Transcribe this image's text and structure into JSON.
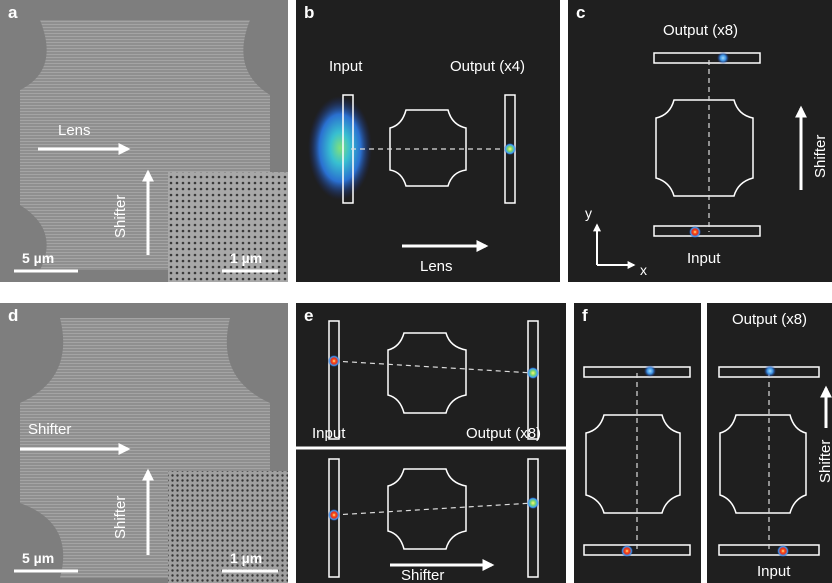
{
  "panels": {
    "a": {
      "letter": "a",
      "lens": "Lens",
      "shifter": "Shifter",
      "scale_main": "5 µm",
      "scale_inset": "1 µm"
    },
    "b": {
      "letter": "b",
      "input": "Input",
      "output": "Output (x4)",
      "lens": "Lens"
    },
    "c": {
      "letter": "c",
      "output": "Output (x8)",
      "input": "Input",
      "shifter": "Shifter",
      "axis_y": "y",
      "axis_x": "x"
    },
    "d": {
      "letter": "d",
      "shifter_h": "Shifter",
      "shifter_v": "Shifter",
      "scale_main": "5 µm",
      "scale_inset": "1 µm"
    },
    "e": {
      "letter": "e",
      "input": "Input",
      "output": "Output (x8)",
      "shifter": "Shifter"
    },
    "f": {
      "letter": "f",
      "output": "Output (x8)",
      "input": "Input",
      "shifter": "Shifter"
    }
  },
  "colors": {
    "sem_bg": "#8c8c8c",
    "field_bg": "#1f1f1f",
    "outline": "#ffffff"
  }
}
